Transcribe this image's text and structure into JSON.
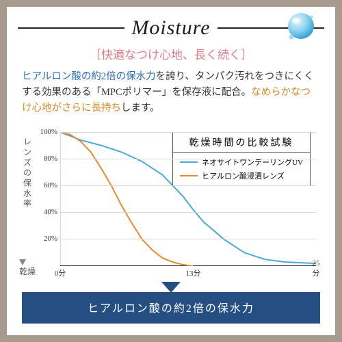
{
  "header": {
    "title": "Moisture",
    "subtitle": "［快適なつけ心地、長く続く］"
  },
  "description": {
    "segments": [
      {
        "text": "ヒアルロン酸の約2倍の保水力",
        "color": "#2b6db8"
      },
      {
        "text": "を誇り、タンパク汚れをつきにくくする効果のある「MPCポリマー」を保存液に配合。",
        "color": "#333333"
      },
      {
        "text": "なめらかなつけ心地がさらに長持ち",
        "color": "#d68a2a"
      },
      {
        "text": "します。",
        "color": "#333333"
      }
    ]
  },
  "chart": {
    "type": "line",
    "title_fontsize": 14,
    "label_fontsize": 12,
    "tick_fontsize": 11,
    "background_color": "#ffffff",
    "grid_color": "#d8d8d8",
    "ylabel_top": "レンズの保水率",
    "ylabel_bottom": "乾燥",
    "ylim": [
      0,
      100
    ],
    "yticks": [
      0,
      20,
      40,
      60,
      80,
      100
    ],
    "ytick_labels": [
      "",
      "20%",
      "40%",
      "60%",
      "80%",
      "100%"
    ],
    "xlim": [
      0,
      25
    ],
    "xticks": [
      0,
      13,
      25
    ],
    "xtick_labels": [
      "0分",
      "13分",
      "25分"
    ],
    "legend_title": "乾燥時間の比較試験",
    "series": [
      {
        "name": "ネオサイトワンデーリングUV",
        "color": "#4aa7d6",
        "line_width": 2,
        "x": [
          0,
          2,
          4,
          6,
          8,
          10,
          12,
          13,
          14,
          16,
          18,
          20,
          22,
          25
        ],
        "y": [
          100,
          94,
          90,
          85,
          78,
          68,
          52,
          42,
          33,
          20,
          10,
          5,
          3,
          2
        ]
      },
      {
        "name": "ヒアルロン酸浸漬レンズ",
        "color": "#e88a2c",
        "line_width": 2,
        "x": [
          0,
          1,
          2,
          3,
          4,
          5,
          6,
          7,
          8,
          9,
          10,
          11,
          12,
          13
        ],
        "y": [
          100,
          98,
          93,
          85,
          73,
          60,
          45,
          32,
          20,
          12,
          6,
          3,
          1,
          0
        ]
      }
    ]
  },
  "banner": {
    "text": "ヒアルロン酸の約2倍の保水力",
    "background_color": "#254f82",
    "text_color": "#ffffff",
    "fontsize": 16
  }
}
